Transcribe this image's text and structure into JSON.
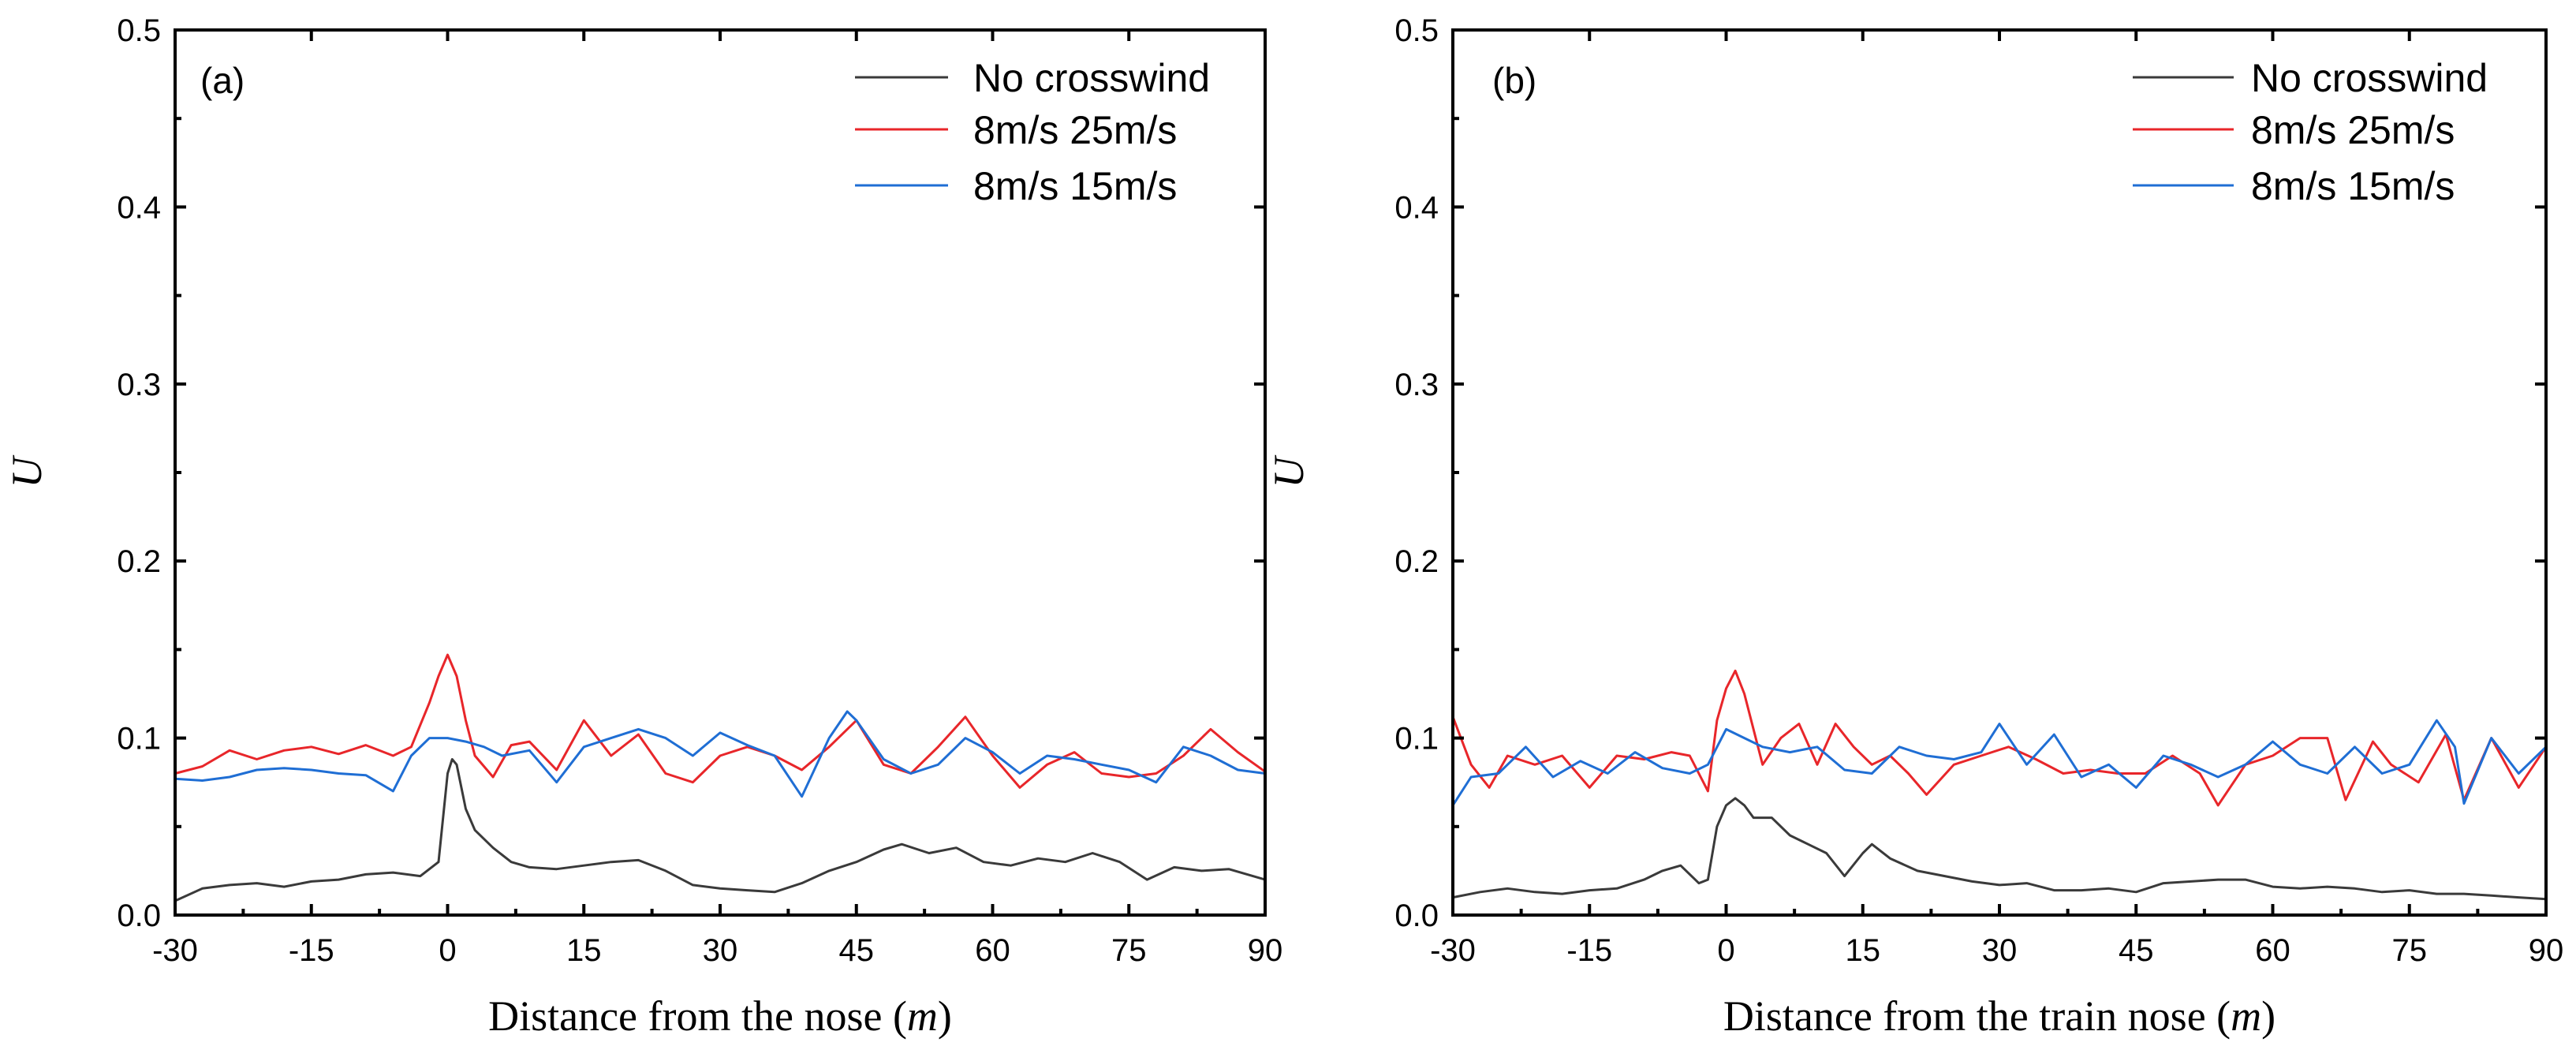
{
  "chart_data": [
    {
      "type": "line",
      "panel_label": "(a)",
      "title": "",
      "xlabel": "Distance from the nose",
      "xlabel_unit": "m",
      "ylabel": "U",
      "xlim": [
        -30,
        90
      ],
      "ylim": [
        0,
        0.5
      ],
      "xticks": [
        -30,
        -15,
        0,
        15,
        30,
        45,
        60,
        75,
        90
      ],
      "yticks": [
        0.0,
        0.1,
        0.2,
        0.3,
        0.4,
        0.5
      ],
      "xtick_labels": [
        "-30",
        "-15",
        "0",
        "15",
        "30",
        "45",
        "60",
        "75",
        "90"
      ],
      "ytick_labels": [
        "0.0",
        "0.1",
        "0.2",
        "0.3",
        "0.4",
        "0.5"
      ],
      "legend_position": "top-right",
      "series": [
        {
          "name": "No crosswind",
          "color": "#3a3a3a",
          "x": [
            -30,
            -27,
            -24,
            -21,
            -18,
            -15,
            -12,
            -9,
            -6,
            -3,
            -1,
            0,
            0.5,
            1,
            2,
            3,
            5,
            7,
            9,
            12,
            15,
            18,
            21,
            24,
            27,
            30,
            33,
            36,
            39,
            42,
            45,
            48,
            50,
            53,
            56,
            59,
            62,
            65,
            68,
            71,
            74,
            77,
            80,
            83,
            86,
            90
          ],
          "y": [
            0.008,
            0.015,
            0.017,
            0.018,
            0.016,
            0.019,
            0.02,
            0.023,
            0.024,
            0.022,
            0.03,
            0.08,
            0.088,
            0.085,
            0.06,
            0.048,
            0.038,
            0.03,
            0.027,
            0.026,
            0.028,
            0.03,
            0.031,
            0.025,
            0.017,
            0.015,
            0.014,
            0.013,
            0.018,
            0.025,
            0.03,
            0.037,
            0.04,
            0.035,
            0.038,
            0.03,
            0.028,
            0.032,
            0.03,
            0.035,
            0.03,
            0.02,
            0.027,
            0.025,
            0.026,
            0.02
          ]
        },
        {
          "name": "8m/s 25m/s",
          "color": "#e8262a",
          "x": [
            -30,
            -27,
            -24,
            -21,
            -18,
            -15,
            -12,
            -9,
            -6,
            -4,
            -2,
            -1,
            0,
            1,
            2,
            3,
            5,
            7,
            9,
            12,
            15,
            18,
            21,
            24,
            27,
            30,
            33,
            36,
            39,
            42,
            45,
            48,
            51,
            54,
            57,
            60,
            63,
            66,
            69,
            72,
            75,
            78,
            81,
            84,
            87,
            90
          ],
          "y": [
            0.08,
            0.084,
            0.093,
            0.088,
            0.093,
            0.095,
            0.091,
            0.096,
            0.09,
            0.095,
            0.12,
            0.135,
            0.147,
            0.135,
            0.11,
            0.09,
            0.078,
            0.096,
            0.098,
            0.082,
            0.11,
            0.09,
            0.102,
            0.08,
            0.075,
            0.09,
            0.095,
            0.09,
            0.082,
            0.095,
            0.11,
            0.085,
            0.08,
            0.095,
            0.112,
            0.09,
            0.072,
            0.085,
            0.092,
            0.08,
            0.078,
            0.08,
            0.09,
            0.105,
            0.092,
            0.081
          ]
        },
        {
          "name": "8m/s 15m/s",
          "color": "#1f6ed4",
          "x": [
            -30,
            -27,
            -24,
            -21,
            -18,
            -15,
            -12,
            -9,
            -6,
            -4,
            -2,
            0,
            2,
            4,
            6,
            9,
            12,
            15,
            18,
            21,
            24,
            27,
            30,
            33,
            36,
            39,
            42,
            44,
            45,
            48,
            51,
            54,
            57,
            60,
            63,
            66,
            69,
            72,
            75,
            78,
            81,
            84,
            87,
            90
          ],
          "y": [
            0.077,
            0.076,
            0.078,
            0.082,
            0.083,
            0.082,
            0.08,
            0.079,
            0.07,
            0.09,
            0.1,
            0.1,
            0.098,
            0.095,
            0.09,
            0.093,
            0.075,
            0.095,
            0.1,
            0.105,
            0.1,
            0.09,
            0.103,
            0.096,
            0.09,
            0.067,
            0.1,
            0.115,
            0.11,
            0.088,
            0.08,
            0.085,
            0.1,
            0.092,
            0.08,
            0.09,
            0.088,
            0.085,
            0.082,
            0.075,
            0.095,
            0.09,
            0.082,
            0.08
          ]
        }
      ]
    },
    {
      "type": "line",
      "panel_label": "(b)",
      "title": "",
      "xlabel": "Distance from the train nose",
      "xlabel_unit": "m",
      "ylabel": "U",
      "xlim": [
        -30,
        90
      ],
      "ylim": [
        0,
        0.5
      ],
      "xticks": [
        -30,
        -15,
        0,
        15,
        30,
        45,
        60,
        75,
        90
      ],
      "yticks": [
        0.0,
        0.1,
        0.2,
        0.3,
        0.4,
        0.5
      ],
      "xtick_labels": [
        "-30",
        "-15",
        "0",
        "15",
        "30",
        "45",
        "60",
        "75",
        "90"
      ],
      "ytick_labels": [
        "0.0",
        "0.1",
        "0.2",
        "0.3",
        "0.4",
        "0.5"
      ],
      "legend_position": "top-right",
      "series": [
        {
          "name": "No crosswind",
          "color": "#3a3a3a",
          "x": [
            -30,
            -27,
            -24,
            -21,
            -18,
            -15,
            -12,
            -9,
            -7,
            -5,
            -3,
            -2,
            -1,
            0,
            1,
            2,
            3,
            5,
            7,
            9,
            11,
            13,
            15,
            16,
            18,
            21,
            24,
            27,
            30,
            33,
            36,
            39,
            42,
            45,
            48,
            51,
            54,
            57,
            60,
            63,
            66,
            69,
            72,
            75,
            78,
            81,
            84,
            87,
            90
          ],
          "y": [
            0.01,
            0.013,
            0.015,
            0.013,
            0.012,
            0.014,
            0.015,
            0.02,
            0.025,
            0.028,
            0.018,
            0.02,
            0.05,
            0.062,
            0.066,
            0.062,
            0.055,
            0.055,
            0.045,
            0.04,
            0.035,
            0.022,
            0.035,
            0.04,
            0.032,
            0.025,
            0.022,
            0.019,
            0.017,
            0.018,
            0.014,
            0.014,
            0.015,
            0.013,
            0.018,
            0.019,
            0.02,
            0.02,
            0.016,
            0.015,
            0.016,
            0.015,
            0.013,
            0.014,
            0.012,
            0.012,
            0.011,
            0.01,
            0.009
          ]
        },
        {
          "name": "8m/s 25m/s",
          "color": "#e8262a",
          "x": [
            -30,
            -28,
            -26,
            -24,
            -21,
            -18,
            -15,
            -12,
            -9,
            -6,
            -4,
            -2,
            -1,
            0,
            1,
            2,
            4,
            6,
            8,
            10,
            12,
            14,
            16,
            18,
            20,
            22,
            25,
            28,
            31,
            34,
            37,
            40,
            43,
            46,
            49,
            52,
            54,
            57,
            60,
            63,
            66,
            68,
            71,
            73,
            76,
            79,
            81,
            84,
            87,
            90
          ],
          "y": [
            0.112,
            0.085,
            0.072,
            0.09,
            0.085,
            0.09,
            0.072,
            0.09,
            0.088,
            0.092,
            0.09,
            0.07,
            0.11,
            0.128,
            0.138,
            0.125,
            0.085,
            0.1,
            0.108,
            0.085,
            0.108,
            0.095,
            0.085,
            0.09,
            0.08,
            0.068,
            0.085,
            0.09,
            0.095,
            0.088,
            0.08,
            0.082,
            0.08,
            0.08,
            0.09,
            0.08,
            0.062,
            0.085,
            0.09,
            0.1,
            0.1,
            0.065,
            0.098,
            0.085,
            0.075,
            0.102,
            0.065,
            0.1,
            0.072,
            0.095
          ]
        },
        {
          "name": "8m/s 15m/s",
          "color": "#1f6ed4",
          "x": [
            -30,
            -28,
            -25,
            -22,
            -19,
            -16,
            -13,
            -10,
            -7,
            -4,
            -2,
            0,
            2,
            4,
            7,
            10,
            13,
            16,
            19,
            22,
            25,
            28,
            30,
            33,
            36,
            39,
            42,
            45,
            48,
            51,
            54,
            57,
            60,
            63,
            66,
            69,
            72,
            75,
            78,
            80,
            81,
            84,
            87,
            90
          ],
          "y": [
            0.062,
            0.078,
            0.08,
            0.095,
            0.078,
            0.087,
            0.08,
            0.092,
            0.083,
            0.08,
            0.085,
            0.105,
            0.1,
            0.095,
            0.092,
            0.095,
            0.082,
            0.08,
            0.095,
            0.09,
            0.088,
            0.092,
            0.108,
            0.085,
            0.102,
            0.078,
            0.085,
            0.072,
            0.09,
            0.085,
            0.078,
            0.085,
            0.098,
            0.085,
            0.08,
            0.095,
            0.08,
            0.085,
            0.11,
            0.095,
            0.063,
            0.1,
            0.08,
            0.095
          ]
        }
      ]
    }
  ]
}
